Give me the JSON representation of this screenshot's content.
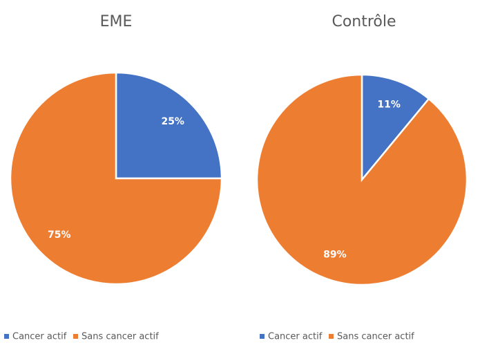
{
  "chart_data": [
    {
      "type": "pie",
      "title": "EME",
      "categories": [
        "Cancer actif",
        "Sans cancer actif"
      ],
      "values": [
        25,
        75
      ],
      "value_labels": [
        "25%",
        "75%"
      ],
      "colors": [
        "#4472c4",
        "#ed7d31"
      ],
      "legend": "bottom"
    },
    {
      "type": "pie",
      "title": "Contrôle",
      "categories": [
        "Cancer actif",
        "Sans cancer actif"
      ],
      "values": [
        11,
        89
      ],
      "value_labels": [
        "11%",
        "89%"
      ],
      "colors": [
        "#4472c4",
        "#ed7d31"
      ],
      "legend": "bottom"
    }
  ]
}
